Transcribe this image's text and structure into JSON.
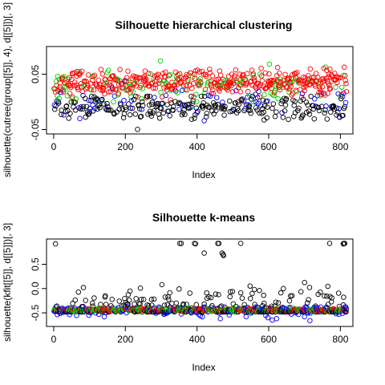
{
  "chart_data": [
    {
      "type": "scatter",
      "title": "Silhouette hierarchical clustering",
      "xlabel": "Index",
      "ylabel": "silhouette(cutree(group[[5]], 4), d[[5]])[, 3]",
      "xlim": [
        -20,
        835
      ],
      "ylim": [
        -0.058,
        0.1
      ],
      "xticks": [
        0,
        200,
        400,
        600,
        800
      ],
      "xtick_labels": [
        "0",
        "200",
        "400",
        "600",
        "800"
      ],
      "yticks": [
        -0.05,
        0.05
      ],
      "ytick_labels": [
        "-0.05",
        "0.05"
      ],
      "grid": false,
      "n_points": 817,
      "series": [
        {
          "color": "#000000",
          "approx_range": [
            -0.055,
            0.01
          ],
          "approx_mean": -0.012
        },
        {
          "color": "#ff0000",
          "approx_range": [
            0.0,
            0.065
          ],
          "approx_mean": 0.035
        },
        {
          "color": "#00cd00",
          "approx_range": [
            0.0,
            0.095
          ],
          "approx_mean": 0.03
        },
        {
          "color": "#0000ff",
          "approx_range": [
            -0.04,
            0.04
          ],
          "approx_mean": 0.0
        }
      ]
    },
    {
      "type": "scatter",
      "title": "Silhouette k-means",
      "xlabel": "Index",
      "ylabel": "silhouette(kfit[[5]], d[[5]])[, 3]",
      "xlim": [
        -20,
        835
      ],
      "ylim": [
        -0.78,
        1.02
      ],
      "xticks": [
        0,
        200,
        400,
        600,
        800
      ],
      "xtick_labels": [
        "0",
        "200",
        "400",
        "600",
        "800"
      ],
      "yticks": [
        -0.5,
        0.0,
        0.5
      ],
      "ytick_labels": [
        "-0.5",
        "0.0",
        "0.5"
      ],
      "grid": false,
      "n_points": 817,
      "series": [
        {
          "color": "#000000",
          "approx_range": [
            -0.48,
            0.93
          ],
          "approx_mean": -0.42
        },
        {
          "color": "#ff0000",
          "approx_range": [
            -0.48,
            -0.38
          ],
          "approx_mean": -0.44
        },
        {
          "color": "#00cd00",
          "approx_range": [
            -0.48,
            -0.38
          ],
          "approx_mean": -0.44
        },
        {
          "color": "#0000ff",
          "approx_range": [
            -0.68,
            -0.38
          ],
          "approx_mean": -0.45
        }
      ],
      "outliers": {
        "high_black": [
          {
            "x": 5,
            "y": 0.92
          },
          {
            "x": 352,
            "y": 0.93
          },
          {
            "x": 356,
            "y": 0.93
          },
          {
            "x": 393,
            "y": 0.93
          },
          {
            "x": 396,
            "y": 0.92
          },
          {
            "x": 420,
            "y": 0.73
          },
          {
            "x": 458,
            "y": 0.93
          },
          {
            "x": 461,
            "y": 0.93
          },
          {
            "x": 470,
            "y": 0.73
          },
          {
            "x": 473,
            "y": 0.7
          },
          {
            "x": 474,
            "y": 0.68
          },
          {
            "x": 522,
            "y": 0.93
          },
          {
            "x": 770,
            "y": 0.93
          },
          {
            "x": 808,
            "y": 0.92
          },
          {
            "x": 810,
            "y": 0.93
          },
          {
            "x": 812,
            "y": 0.93
          }
        ],
        "low_blue": [
          {
            "x": 465,
            "y": -0.62
          },
          {
            "x": 537,
            "y": -0.58
          },
          {
            "x": 598,
            "y": -0.6
          },
          {
            "x": 610,
            "y": -0.65
          },
          {
            "x": 622,
            "y": -0.62
          },
          {
            "x": 700,
            "y": -0.58
          },
          {
            "x": 715,
            "y": -0.66
          }
        ]
      }
    }
  ]
}
